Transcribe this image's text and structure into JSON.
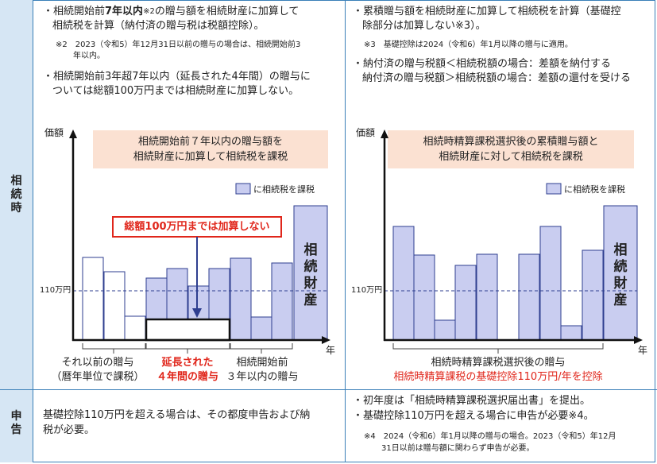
{
  "rows": {
    "souzokuji": "相\n続\n時",
    "shinkoku": "申\n告"
  },
  "left": {
    "b1_pre": "・相続開始前",
    "b1_bold": "7年以内",
    "b1_note": "※2",
    "b1_post": "の贈与額を相続財産に加算して",
    "b1_line2": "相続税を計算（納付済の贈与税は税額控除）。",
    "note2": "※2　2023（令和5）年12月31日以前の贈与の場合は、相続開始前3",
    "note2b": "年以内。",
    "b2_line1": "・相続開始前3年超7年以内（延長された4年間）の贈与に",
    "b2_line2": "ついては総額100万円までは相続財産に加算しない。",
    "axis_y": "価額",
    "axis_x": "年",
    "box_line1": "相続開始前７年以内の贈与額を",
    "box_line2": "相続財産に加算して相続税を課税",
    "legend": "に相続税を課税",
    "callout": "総額100万円までは加算しない",
    "estate": "相\n続\n財\n産",
    "ref_label": "110万円",
    "g1_line1": "それ以前の贈与",
    "g1_line2": "（暦年単位で課税）",
    "g2_line1": "延長された",
    "g2_line2": "４年間の贈与",
    "g3_line1": "相続開始前",
    "g3_line2": "３年以内の贈与",
    "shinkoku_line1": "基礎控除110万円を超える場合は、その都度申告および納",
    "shinkoku_line2": "税が必要。"
  },
  "right": {
    "b1_line1": "・累積贈与額を相続財産に加算して相続税を計算（基礎控",
    "b1_line2": "除部分は加算しない※3）。",
    "note3": "※3　基礎控除は2024（令和6）年1月以降の贈与に適用。",
    "b2_line1": "・納付済の贈与税額＜相続税額の場合：差額を納付する",
    "b2_line2": "納付済の贈与税額＞相続税額の場合：差額の還付を受ける",
    "axis_y": "価額",
    "axis_x": "年",
    "box_line1": "相続時精算課税選択後の累積贈与額と",
    "box_line2": "相続財産に対して相続税を課税",
    "legend": "に相続税を課税",
    "estate": "相\n続\n財\n産",
    "ref_label": "110万円",
    "caption1": "相続時精算課税選択後の贈与",
    "caption2": "相続時精算課税の基礎控除110万円/年を控除",
    "shinkoku_line1": "・初年度は「相続時精算課税選択届出書」を提出。",
    "shinkoku_line2": "・基礎控除110万円を超える場合に申告が必要※4。",
    "note4_line1": "※4　2024（令和6）年1月以降の贈与の場合。2023（令和5）年12月",
    "note4_line2": "31日以前は贈与額に関わらず申告が必要。"
  },
  "colors": {
    "border": "#3a7fb8",
    "header_bg": "#d6e6f4",
    "taxed_fill": "#c9cdf0",
    "bar_stroke": "#2e3e8f",
    "box_fill": "#fbe1d2",
    "red": "#e0261b"
  }
}
